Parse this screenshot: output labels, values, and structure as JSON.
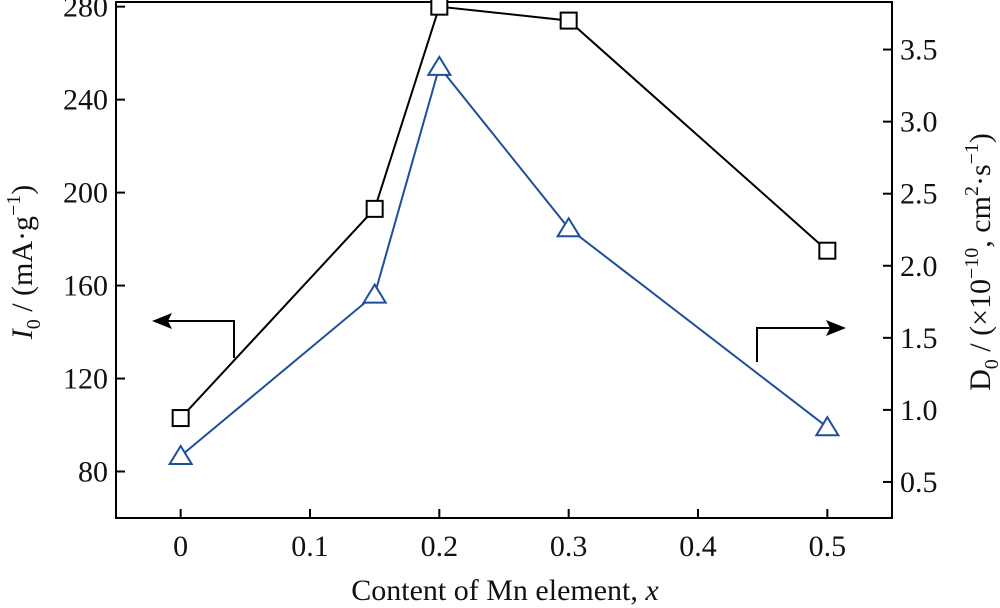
{
  "chart_data": {
    "type": "line",
    "xlabel": "Content of Mn element, x",
    "xlabel_main": "Content of Mn element, ",
    "xlabel_var": "x",
    "ylabel_left": "I0 / (mA·g⁻¹)",
    "ylabel_left_parts": {
      "sym": "I",
      "sub": "0",
      "unit": " / (mA·g",
      "sup": "−1",
      "close": ")"
    },
    "ylabel_right": "D0 / (×10⁻¹⁰, cm²·s⁻¹)",
    "ylabel_right_parts": {
      "sym": "D",
      "sub": "0",
      "a": " / (×10",
      "sup1": "−10",
      "b": ", cm",
      "sup2": "2",
      "c": "·s",
      "sup3": "−1",
      "d": ")"
    },
    "xlim": [
      -0.05,
      0.55
    ],
    "ylim_left": [
      60,
      282
    ],
    "ylim_right": [
      0.25,
      3.83
    ],
    "x_ticks": [
      0,
      0.1,
      0.2,
      0.3,
      0.4,
      0.5
    ],
    "x_tick_labels": [
      "0",
      "0.1",
      "0.2",
      "0.3",
      "0.4",
      "0.5"
    ],
    "y_left_ticks": [
      80,
      120,
      160,
      200,
      240,
      280
    ],
    "y_left_tick_labels": [
      "80",
      "120",
      "160",
      "200",
      "240",
      "280"
    ],
    "y_right_ticks": [
      0.5,
      1.0,
      1.5,
      2.0,
      2.5,
      3.0,
      3.5
    ],
    "y_right_tick_labels": [
      "0.5",
      "1.0",
      "1.5",
      "2.0",
      "2.5",
      "3.0",
      "3.5"
    ],
    "grid": false,
    "legend": "none",
    "series": [
      {
        "axis": "left",
        "marker": "square",
        "color": "#000000",
        "x": [
          0,
          0.15,
          0.2,
          0.3,
          0.5
        ],
        "y": [
          103,
          193,
          280,
          274,
          175
        ]
      },
      {
        "axis": "right",
        "marker": "triangle",
        "color": "#1f4e9c",
        "x": [
          0,
          0.15,
          0.2,
          0.3,
          0.5
        ],
        "y": [
          0.68,
          1.8,
          3.38,
          2.26,
          0.88
        ]
      }
    ],
    "annotations": [
      {
        "type": "arrow",
        "direction": "left",
        "points_to": "left-axis"
      },
      {
        "type": "arrow",
        "direction": "right",
        "points_to": "right-axis"
      }
    ]
  }
}
